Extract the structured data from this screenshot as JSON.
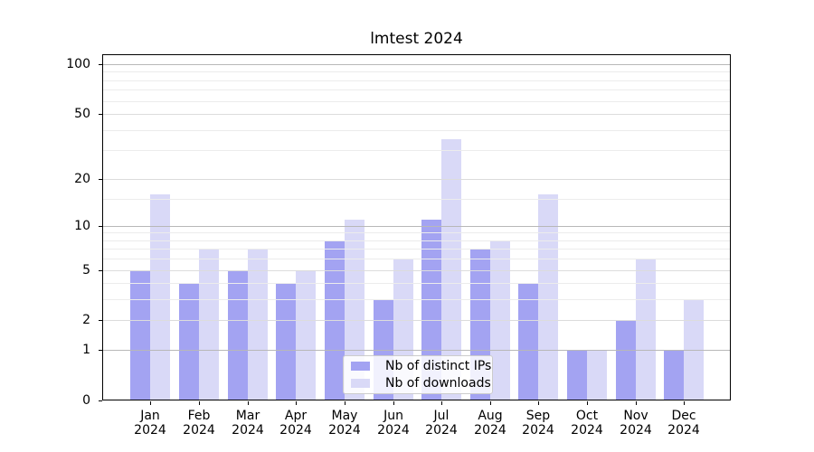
{
  "chart_data": {
    "type": "bar",
    "title": "lmtest 2024",
    "categories": [
      "Jan 2024",
      "Feb 2024",
      "Mar 2024",
      "Apr 2024",
      "May 2024",
      "Jun 2024",
      "Jul 2024",
      "Aug 2024",
      "Sep 2024",
      "Oct 2024",
      "Nov 2024",
      "Dec 2024"
    ],
    "series": [
      {
        "name": "Nb of distinct IPs",
        "color": "#a3a3f2",
        "values": [
          5,
          4,
          5,
          4,
          8,
          3,
          11,
          7,
          4,
          1,
          2,
          1
        ]
      },
      {
        "name": "Nb of downloads",
        "color": "#d9d9f7",
        "values": [
          16,
          7,
          7,
          5,
          11,
          6,
          35,
          8,
          16,
          1,
          6,
          3
        ]
      }
    ],
    "xlabel": "",
    "ylabel": "",
    "yscale": "log1p",
    "ylim": [
      0,
      113
    ],
    "yticks": [
      100,
      50,
      20,
      10,
      5,
      2,
      1,
      0
    ],
    "minor_gridlines": [
      3,
      4,
      6,
      7,
      8,
      9,
      15,
      30,
      40,
      60,
      70,
      80,
      90
    ],
    "grid": "both",
    "legend_position": "lower center"
  },
  "colors": {
    "bar_distinct_ips": "#a3a3f2",
    "bar_downloads": "#d9d9f7",
    "grid_decade": "#b8b8b8",
    "grid_major": "#dcdcdc",
    "grid_minor": "#ececec",
    "spine": "#000000",
    "legend_border": "#cccccc"
  }
}
